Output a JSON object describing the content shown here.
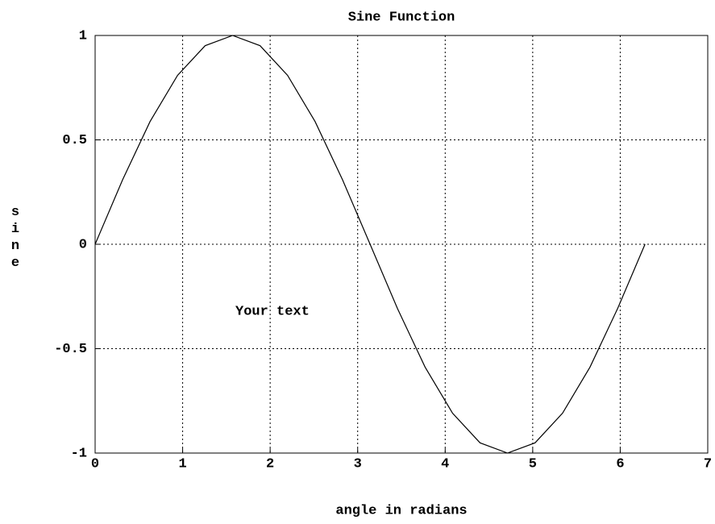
{
  "chart_data": {
    "type": "line",
    "title": "Sine Function",
    "x_label": "angle in radians",
    "y_label": "sine",
    "annotation": "Your text",
    "x": [
      0,
      0.314,
      0.628,
      0.942,
      1.257,
      1.571,
      1.885,
      2.199,
      2.513,
      2.827,
      3.142,
      3.456,
      3.77,
      4.084,
      4.398,
      4.712,
      5.027,
      5.341,
      5.655,
      5.969,
      6.283
    ],
    "series": [
      {
        "color": "#000000",
        "values": [
          0,
          0.309,
          0.588,
          0.809,
          0.951,
          1,
          0.951,
          0.809,
          0.588,
          0.309,
          0,
          -0.309,
          -0.588,
          -0.809,
          -0.951,
          -1,
          -0.951,
          -0.809,
          -0.588,
          -0.309,
          0
        ]
      }
    ],
    "xlim": [
      0,
      7
    ],
    "xticks": [
      0,
      1,
      2,
      3,
      4,
      5,
      6,
      7
    ],
    "ylim": [
      -1,
      1
    ],
    "yticks": [
      -1,
      -0.5,
      0,
      0.5,
      1
    ],
    "grid": true
  }
}
